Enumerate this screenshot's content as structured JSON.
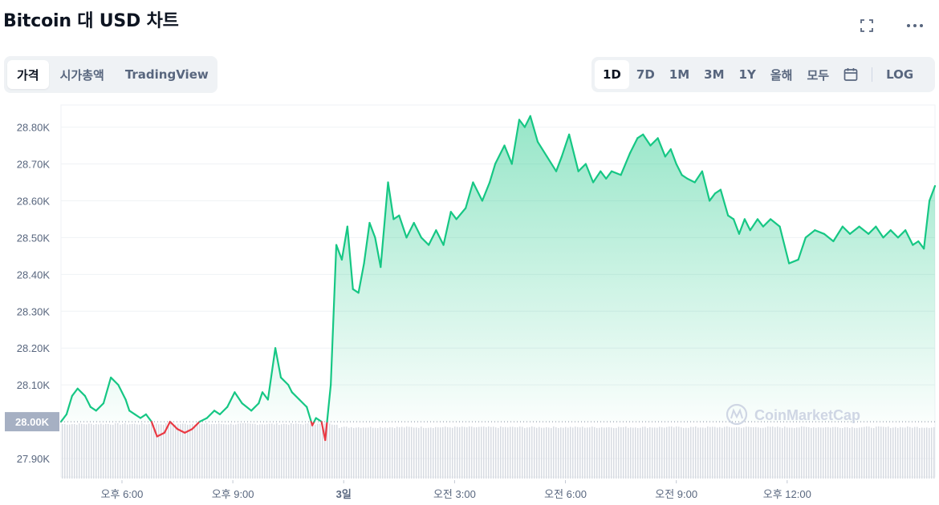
{
  "title": "Bitcoin 대 USD 차트",
  "header_icons": [
    "fullscreen-icon",
    "more-icon"
  ],
  "tabs": {
    "items": [
      "가격",
      "시가총액",
      "TradingView"
    ],
    "active": "가격"
  },
  "ranges": {
    "items": [
      "1D",
      "7D",
      "1M",
      "3M",
      "1Y",
      "올해",
      "모두"
    ],
    "active": "1D",
    "calendar_icon": "calendar-icon",
    "log_label": "LOG"
  },
  "watermark": "CoinMarketCap",
  "colors": {
    "up": "#16c784",
    "down": "#ea3943",
    "grid": "#eff2f5",
    "text": "#58667e",
    "badge": "#a6b0c3"
  },
  "chart_data": {
    "type": "area",
    "ylim": [
      27.85,
      28.86
    ],
    "ytick_values": [
      27.9,
      28.0,
      28.1,
      28.2,
      28.3,
      28.4,
      28.5,
      28.6,
      28.7,
      28.8
    ],
    "ytick_labels": [
      "27.90K",
      "28.00K",
      "28.10K",
      "28.20K",
      "28.30K",
      "28.40K",
      "28.50K",
      "28.60K",
      "28.70K",
      "28.80K"
    ],
    "baseline_value": 28.0,
    "baseline_label": "28.00K",
    "x_range": [
      16.35,
      40.0
    ],
    "xtick_values": [
      18,
      21,
      24,
      27,
      30,
      33,
      36
    ],
    "xtick_labels": [
      "오후 6:00",
      "오후 9:00",
      "3일",
      "오전 3:00",
      "오전 6:00",
      "오전 9:00",
      "오후 12:00"
    ],
    "xtick_bold": [
      false,
      false,
      true,
      false,
      false,
      false,
      false
    ],
    "series": [
      {
        "x": [
          16.35,
          16.5,
          16.65,
          16.8,
          17.0,
          17.15,
          17.3,
          17.5,
          17.7,
          17.9,
          18.1,
          18.2,
          18.35,
          18.5,
          18.65,
          18.8,
          18.95,
          19.15,
          19.3,
          19.5,
          19.7,
          19.9,
          20.1,
          20.3,
          20.5,
          20.65,
          20.85,
          21.05,
          21.25,
          21.5,
          21.7,
          21.8,
          21.95,
          22.15,
          22.3,
          22.5,
          22.6,
          22.8,
          23.0,
          23.15,
          23.25,
          23.4,
          23.5,
          23.65,
          23.8,
          23.95,
          24.1,
          24.25,
          24.4,
          24.55,
          24.7,
          24.85,
          25.0,
          25.2,
          25.35,
          25.5,
          25.7,
          25.9,
          26.1,
          26.3,
          26.5,
          26.7,
          26.9,
          27.05,
          27.3,
          27.5,
          27.75,
          27.95,
          28.1,
          28.35,
          28.55,
          28.75,
          28.9,
          29.05,
          29.25,
          29.5,
          29.75,
          29.9,
          30.1,
          30.35,
          30.55,
          30.75,
          30.95,
          31.1,
          31.25,
          31.5,
          31.75,
          31.95,
          32.1,
          32.3,
          32.5,
          32.7,
          32.85,
          33.0,
          33.15,
          33.3,
          33.5,
          33.7,
          33.9,
          34.05,
          34.2,
          34.4,
          34.55,
          34.7,
          34.85,
          35.0,
          35.2,
          35.35,
          35.55,
          35.8,
          36.05,
          36.3,
          36.5,
          36.75,
          37.0,
          37.25,
          37.5,
          37.7,
          37.95,
          38.2,
          38.4,
          38.6,
          38.8,
          39.0,
          39.2,
          39.4,
          39.55,
          39.7,
          39.85,
          40.0
        ],
        "values": [
          28.0,
          28.02,
          28.07,
          28.09,
          28.07,
          28.04,
          28.03,
          28.05,
          28.12,
          28.1,
          28.06,
          28.03,
          28.02,
          28.01,
          28.02,
          28.0,
          27.96,
          27.97,
          28.0,
          27.98,
          27.97,
          27.98,
          28.0,
          28.01,
          28.03,
          28.02,
          28.04,
          28.08,
          28.05,
          28.03,
          28.05,
          28.08,
          28.06,
          28.2,
          28.12,
          28.1,
          28.08,
          28.06,
          28.04,
          27.99,
          28.01,
          28.0,
          27.95,
          28.1,
          28.48,
          28.44,
          28.53,
          28.36,
          28.35,
          28.43,
          28.54,
          28.5,
          28.42,
          28.65,
          28.55,
          28.56,
          28.5,
          28.54,
          28.5,
          28.48,
          28.52,
          28.48,
          28.57,
          28.55,
          28.58,
          28.65,
          28.6,
          28.65,
          28.7,
          28.75,
          28.7,
          28.82,
          28.8,
          28.83,
          28.76,
          28.72,
          28.68,
          28.72,
          28.78,
          28.68,
          28.7,
          28.65,
          28.68,
          28.66,
          28.68,
          28.67,
          28.73,
          28.77,
          28.78,
          28.75,
          28.77,
          28.72,
          28.74,
          28.7,
          28.67,
          28.66,
          28.65,
          28.68,
          28.6,
          28.62,
          28.63,
          28.56,
          28.55,
          28.51,
          28.55,
          28.52,
          28.55,
          28.53,
          28.55,
          28.53,
          28.43,
          28.44,
          28.5,
          28.52,
          28.51,
          28.49,
          28.53,
          28.51,
          28.53,
          28.51,
          28.53,
          28.5,
          28.52,
          28.5,
          28.52,
          28.48,
          28.49,
          28.47,
          28.6,
          28.64
        ]
      }
    ],
    "volume_note": "light gray volume bars along the bottom"
  }
}
